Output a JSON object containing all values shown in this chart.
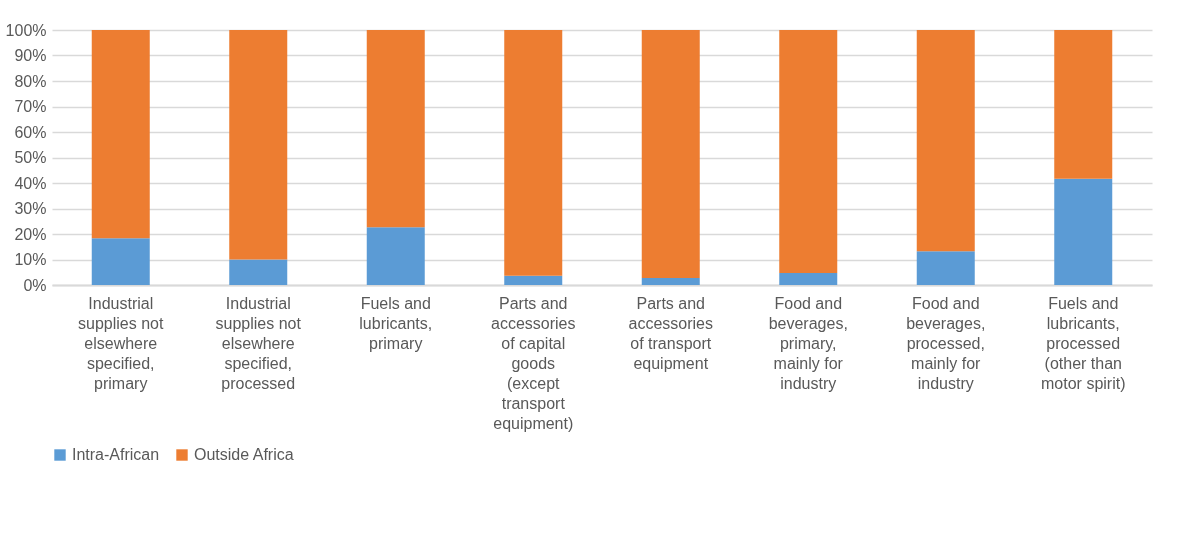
{
  "chart_data": {
    "type": "bar",
    "stacked": true,
    "categories": [
      "Industrial supplies not elsewhere specified, primary",
      "Industrial supplies not elsewhere specified, processed",
      "Fuels and lubricants, primary",
      "Parts and accessories of capital goods (except transport equipment)",
      "Parts and accessories of transport equipment",
      "Food and beverages, primary, mainly for industry",
      "Food and beverages, processed, mainly for industry",
      "Fuels and lubricants, processed (other than motor spirit)"
    ],
    "series": [
      {
        "name": "Intra-African",
        "color": "#5b9bd5",
        "values": [
          18.3,
          10,
          22.6,
          3.6,
          2.7,
          4.7,
          13.2,
          41.7
        ]
      },
      {
        "name": "Outside Africa",
        "color": "#ed7d31",
        "values": [
          81.7,
          90,
          77.4,
          96.4,
          97.3,
          95.3,
          86.8,
          58.3
        ]
      }
    ],
    "ylim": [
      0,
      100
    ],
    "yticks": [
      {
        "value": 0,
        "label": "0%"
      },
      {
        "value": 10,
        "label": "10%"
      },
      {
        "value": 20,
        "label": "20%"
      },
      {
        "value": 30,
        "label": "30%"
      },
      {
        "value": 40,
        "label": "40%"
      },
      {
        "value": 50,
        "label": "50%"
      },
      {
        "value": 60,
        "label": "60%"
      },
      {
        "value": 70,
        "label": "70%"
      },
      {
        "value": 80,
        "label": "80%"
      },
      {
        "value": 90,
        "label": "90%"
      },
      {
        "value": 100,
        "label": "100%"
      }
    ],
    "grid": "y",
    "legend": "bottom"
  }
}
